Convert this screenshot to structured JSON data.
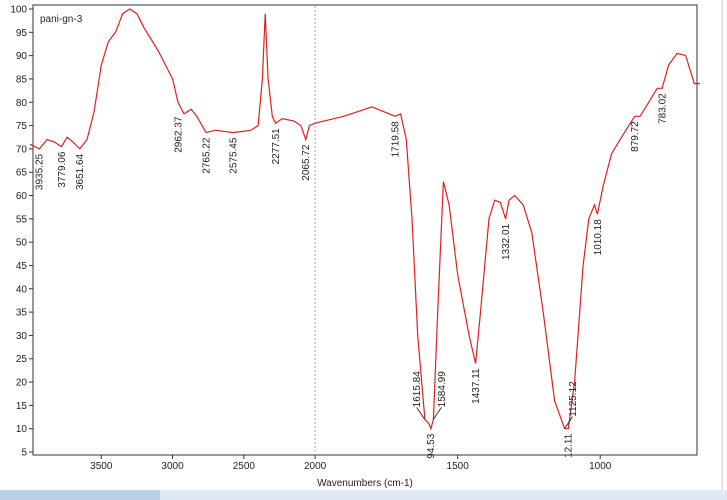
{
  "chart_data": {
    "type": "line",
    "title": "pani-gn-3",
    "x_label": "Wavenumbers (cm-1)",
    "xlim": [
      4000,
      650
    ],
    "ylim": [
      5,
      100
    ],
    "x_break": {
      "at": 2000,
      "expansion": 2
    },
    "xticks": [
      3500,
      3000,
      2500,
      2000,
      1500,
      1000
    ],
    "yticks": [
      5,
      10,
      15,
      20,
      25,
      30,
      35,
      40,
      45,
      50,
      55,
      60,
      65,
      70,
      75,
      80,
      85,
      90,
      95,
      100
    ],
    "series": [
      {
        "name": "pani-gn-3",
        "color": "#e02020",
        "x": [
          4000,
          3935,
          3880,
          3830,
          3779,
          3740,
          3700,
          3651,
          3600,
          3550,
          3500,
          3450,
          3400,
          3350,
          3300,
          3250,
          3200,
          3100,
          3000,
          2962,
          2920,
          2870,
          2830,
          2765,
          2700,
          2575,
          2450,
          2400,
          2370,
          2350,
          2330,
          2300,
          2277,
          2230,
          2150,
          2100,
          2065,
          2040,
          2000,
          1900,
          1800,
          1760,
          1719,
          1700,
          1680,
          1660,
          1640,
          1615,
          1600,
          1594,
          1585,
          1570,
          1550,
          1530,
          1500,
          1460,
          1437,
          1420,
          1390,
          1370,
          1350,
          1332,
          1320,
          1300,
          1270,
          1240,
          1200,
          1160,
          1125,
          1112,
          1090,
          1060,
          1040,
          1020,
          1010,
          990,
          960,
          920,
          879,
          860,
          830,
          800,
          783,
          760,
          730,
          700,
          670,
          650
        ],
        "values": [
          71,
          70,
          72,
          71.5,
          70.5,
          72.5,
          71.5,
          70,
          72,
          78,
          88,
          93,
          95,
          99,
          100,
          99,
          96,
          91,
          85,
          80,
          77.5,
          78.5,
          77,
          73.5,
          74,
          73.5,
          74,
          75,
          85,
          99,
          85,
          77,
          75.5,
          76.5,
          76,
          75,
          72,
          75,
          75.5,
          77,
          79,
          78,
          77,
          77.5,
          72,
          55,
          30,
          12,
          11,
          10,
          12,
          35,
          63,
          58,
          43,
          30,
          24,
          35,
          55,
          59,
          58.5,
          55,
          59,
          60,
          58,
          52,
          35,
          16,
          10,
          10,
          20,
          45,
          55,
          58,
          56,
          62,
          69,
          73,
          77,
          77,
          80,
          83,
          83,
          88,
          90.5,
          90,
          84,
          84
        ]
      }
    ],
    "annotations": [
      {
        "label": "3935.25",
        "x": 3935.25,
        "y": 70
      },
      {
        "label": "3779.06",
        "x": 3779.06,
        "y": 70.5
      },
      {
        "label": "3651.64",
        "x": 3651.64,
        "y": 70
      },
      {
        "label": "2962.37",
        "x": 2962.37,
        "y": 78
      },
      {
        "label": "2765.22",
        "x": 2765.22,
        "y": 73.5
      },
      {
        "label": "2575.45",
        "x": 2575.45,
        "y": 73.5
      },
      {
        "label": "2277.51",
        "x": 2277.51,
        "y": 75.5
      },
      {
        "label": "2065.72",
        "x": 2065.72,
        "y": 72
      },
      {
        "label": "1719.58",
        "x": 1719.58,
        "y": 77
      },
      {
        "label": "1615.84",
        "x": 1615.84,
        "y": 12
      },
      {
        "label": "94.53",
        "x": 1594.53,
        "y": 10
      },
      {
        "label": "1584.99",
        "x": 1584.99,
        "y": 12
      },
      {
        "label": "1437.11",
        "x": 1437.11,
        "y": 24
      },
      {
        "label": "1332.01",
        "x": 1332.01,
        "y": 55
      },
      {
        "label": "1125.12",
        "x": 1125.12,
        "y": 10
      },
      {
        "label": "12.11",
        "x": 1112.11,
        "y": 10
      },
      {
        "label": "1010.18",
        "x": 1010.18,
        "y": 56
      },
      {
        "label": "879.72",
        "x": 879.72,
        "y": 77
      },
      {
        "label": "783.02",
        "x": 783.02,
        "y": 83
      }
    ]
  }
}
